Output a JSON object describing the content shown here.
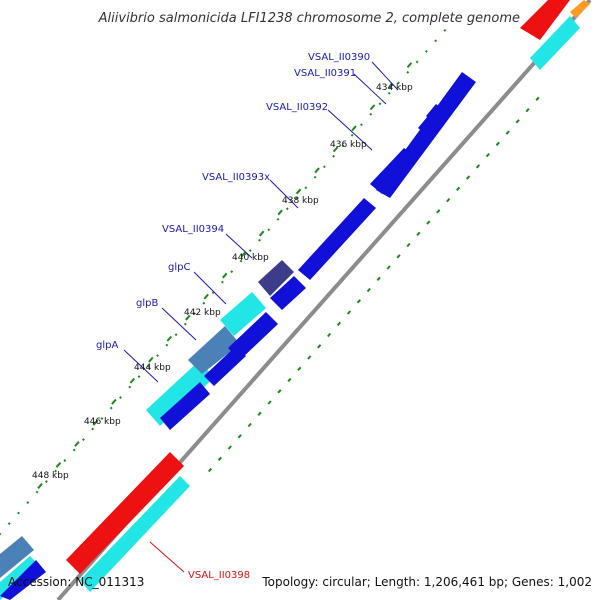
{
  "title": "Aliivibrio salmonicida LFI1238 chromosome 2, complete genome",
  "footer": {
    "accession": "Accession: NC_011313",
    "summary": "Topology: circular; Length: 1,206,461 bp; Genes: 1,002"
  },
  "ticks": [
    "434 kbp",
    "436 kbp",
    "438 kbp",
    "440 kbp",
    "442 kbp",
    "444 kbp",
    "446 kbp",
    "448 kbp"
  ],
  "colors": {
    "forward_cds": "#1010d8",
    "cyan_track": "#22e6e6",
    "steelblue_gene": "#4a82b8",
    "purple_gene": "#3c3c8a",
    "red_gene": "#ee1111",
    "orange_gene": "#ff9a22",
    "backbone": "#8c8c8c",
    "tick_green": "#1a8a1a",
    "label_blue": "#1a1ab4",
    "label_red": "#dd1111"
  },
  "genes": [
    {
      "id": "g1",
      "label": "VSAL_II0390",
      "color": "#1a1ab4"
    },
    {
      "id": "g2",
      "label": "VSAL_II0391",
      "color": "#1a1ab4"
    },
    {
      "id": "g3",
      "label": "VSAL_II0392",
      "color": "#1a1ab4"
    },
    {
      "id": "g4",
      "label": "VSAL_II0393x",
      "color": "#1a1ab4"
    },
    {
      "id": "g5",
      "label": "VSAL_II0394",
      "color": "#1a1ab4"
    },
    {
      "id": "g6",
      "label": "glpC",
      "color": "#1a1ab4"
    },
    {
      "id": "g7",
      "label": "glpB",
      "color": "#1a1ab4"
    },
    {
      "id": "g8",
      "label": "glpA",
      "color": "#1a1ab4"
    },
    {
      "id": "g9",
      "label": "VSAL_II0398",
      "color": "#dd1111"
    }
  ]
}
